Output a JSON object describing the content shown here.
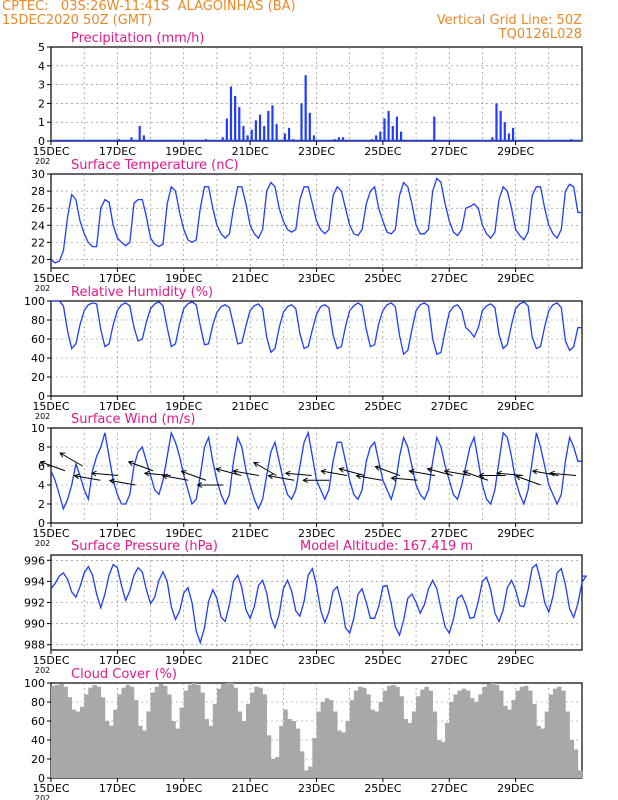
{
  "header": {
    "line1_left": "CPTEC:   03S:26W-11:41S  ALAGOINHAS (BA)",
    "line2_left": "15DEC2020 50Z (GMT)",
    "line1_right": "Vertical Grid Line: 50Z",
    "line2_right": "TQ0126L028"
  },
  "colors": {
    "header": "#e8892a",
    "title": "#e0198c",
    "line": "#1f3cff",
    "cloud": "#a8a8a8",
    "grid": "#808080"
  },
  "x_tick_labels": [
    "15DEC",
    "17DEC",
    "19DEC",
    "21DEC",
    "23DEC",
    "25DEC",
    "27DEC",
    "29DEC"
  ],
  "year_fragment": "202",
  "panels": [
    {
      "id": "precip",
      "title": "Precipitation (mm/h)",
      "yticks": [
        "0",
        "1",
        "2",
        "3",
        "4",
        "5"
      ]
    },
    {
      "id": "temp",
      "title": "Surface Temperature (nC)",
      "yticks": [
        "20",
        "22",
        "24",
        "26",
        "28",
        "30"
      ]
    },
    {
      "id": "rh",
      "title": "Relative Humidity (%)",
      "yticks": [
        "0",
        "20",
        "40",
        "60",
        "80",
        "100"
      ]
    },
    {
      "id": "wind",
      "title": "Surface Wind (m/s)",
      "yticks": [
        "0",
        "2",
        "4",
        "6",
        "8",
        "10"
      ]
    },
    {
      "id": "press",
      "title": "Surface Pressure (hPa)",
      "extra": "Model Altitude: 167.419 m",
      "yticks": [
        "988",
        "990",
        "992",
        "994",
        "996"
      ]
    },
    {
      "id": "cloud",
      "title": "Cloud Cover (%)",
      "yticks": [
        "0",
        "20",
        "40",
        "60",
        "80",
        "100"
      ]
    }
  ],
  "chart_data": [
    {
      "type": "bar",
      "title": "Precipitation (mm/h)",
      "ylim": [
        0,
        5
      ],
      "x_start": "2020-12-15",
      "x_step_hours": 3,
      "values": [
        0,
        0,
        0,
        0,
        0,
        0,
        0,
        0,
        0,
        0,
        0,
        0,
        0,
        0,
        0,
        0,
        0.1,
        0,
        0,
        0.2,
        0,
        0.8,
        0.3,
        0,
        0,
        0,
        0,
        0,
        0,
        0,
        0,
        0,
        0,
        0,
        0,
        0,
        0,
        0.1,
        0,
        0,
        0,
        0.2,
        1.2,
        2.9,
        2.4,
        1.8,
        0.8,
        0.3,
        0.6,
        1.1,
        1.4,
        0.8,
        1.6,
        1.9,
        0.9,
        0,
        0.4,
        0.7,
        0.1,
        0,
        2.0,
        3.5,
        1.5,
        0.3,
        0,
        0,
        0,
        0,
        0.1,
        0.2,
        0.2,
        0,
        0,
        0,
        0,
        0,
        0,
        0.1,
        0.3,
        0.5,
        1.2,
        1.6,
        0.8,
        1.3,
        0.5,
        0,
        0,
        0,
        0,
        0,
        0,
        0,
        1.3,
        0,
        0,
        0,
        0,
        0,
        0,
        0,
        0,
        0,
        0,
        0,
        0,
        0,
        0.2,
        2.0,
        1.6,
        1.0,
        0.4,
        0.7,
        0,
        0,
        0,
        0,
        0,
        0,
        0,
        0,
        0,
        0,
        0,
        0,
        0,
        0.1,
        0,
        0,
        0,
        0
      ]
    },
    {
      "type": "line",
      "title": "Surface Temperature (nC)",
      "ylim": [
        19,
        30
      ],
      "x_start": "2020-12-15",
      "x_step_hours": 3,
      "values": [
        20,
        19.6,
        19.8,
        21,
        25,
        27.6,
        27,
        24.5,
        23,
        22,
        21.5,
        21.5,
        26,
        27,
        26.7,
        24,
        22.5,
        22,
        21.6,
        22,
        26.6,
        27,
        27,
        25,
        22.5,
        21.8,
        21.5,
        21.8,
        26.5,
        28.5,
        28,
        25.5,
        23.5,
        22.3,
        22,
        22.3,
        26,
        28.5,
        28.5,
        26,
        24,
        23,
        22.5,
        23,
        26,
        28.5,
        28.5,
        26.5,
        24,
        23,
        22.5,
        23.5,
        28,
        29,
        28.5,
        26,
        24.5,
        23.5,
        23.2,
        23.5,
        27,
        28.5,
        28.5,
        26.5,
        24.5,
        23.5,
        23,
        23.5,
        27.5,
        28.5,
        28,
        26,
        24,
        23,
        22.8,
        23.5,
        26.5,
        28,
        28.5,
        26,
        24.5,
        23.2,
        23,
        23.5,
        27.5,
        29,
        28.5,
        26.5,
        24,
        23,
        23,
        23.5,
        28,
        29.5,
        29,
        26.5,
        24.5,
        23.2,
        22.8,
        23.5,
        26,
        26.2,
        26.5,
        26,
        24,
        23,
        22.5,
        23.2,
        27,
        28.5,
        28,
        26,
        23.5,
        22.8,
        22.3,
        23.2,
        27.5,
        28.5,
        28.5,
        26,
        24,
        23,
        22.5,
        23.5,
        28,
        28.8,
        28.5,
        25.5
      ]
    },
    {
      "type": "line",
      "title": "Relative Humidity (%)",
      "ylim": [
        0,
        100
      ],
      "x_start": "2020-12-15",
      "x_step_hours": 3,
      "values": [
        100,
        100,
        100,
        95,
        68,
        50,
        55,
        75,
        90,
        96,
        98,
        97,
        70,
        52,
        55,
        75,
        90,
        96,
        98,
        95,
        72,
        58,
        60,
        78,
        92,
        97,
        99,
        95,
        72,
        52,
        55,
        76,
        92,
        97,
        99,
        96,
        74,
        54,
        55,
        75,
        88,
        94,
        96,
        93,
        75,
        55,
        56,
        74,
        90,
        95,
        97,
        92,
        62,
        46,
        50,
        72,
        88,
        94,
        96,
        92,
        66,
        50,
        52,
        70,
        86,
        94,
        96,
        93,
        64,
        50,
        52,
        73,
        90,
        95,
        98,
        95,
        70,
        52,
        54,
        76,
        90,
        96,
        98,
        94,
        64,
        44,
        48,
        70,
        90,
        96,
        98,
        95,
        60,
        44,
        46,
        68,
        88,
        94,
        96,
        90,
        72,
        68,
        62,
        72,
        90,
        95,
        97,
        93,
        65,
        50,
        54,
        75,
        92,
        97,
        99,
        95,
        62,
        50,
        52,
        73,
        90,
        96,
        98,
        93,
        58,
        48,
        52,
        72
      ]
    },
    {
      "type": "line",
      "title": "Surface Wind (m/s)",
      "ylim": [
        0,
        10
      ],
      "x_start": "2020-12-15",
      "x_step_hours": 3,
      "values": [
        5.5,
        4.5,
        3,
        1.5,
        2.5,
        4,
        6.2,
        5,
        3.5,
        2.5,
        5.5,
        7,
        8,
        9.5,
        7,
        4.5,
        3,
        2,
        2,
        3,
        6,
        7.5,
        8,
        6.5,
        5,
        3.5,
        3,
        4.5,
        7,
        9.5,
        8.5,
        7,
        5,
        3.5,
        2,
        2.5,
        5,
        8,
        9,
        6.5,
        4.5,
        3,
        2,
        3,
        6.5,
        9,
        8,
        5.5,
        4,
        2.5,
        1.5,
        2.5,
        5,
        7.5,
        8.5,
        6.5,
        4.5,
        3,
        2.5,
        3.5,
        6,
        8.5,
        9.5,
        7,
        4.5,
        3.5,
        2.5,
        3.5,
        6.5,
        8.5,
        8.5,
        6.5,
        4.5,
        3,
        2.5,
        3.5,
        6.5,
        8,
        8.5,
        6.5,
        4.5,
        3.5,
        2.5,
        4,
        7,
        9,
        8,
        6,
        4,
        3,
        2.5,
        3.5,
        6.5,
        9,
        8,
        6,
        4.5,
        3,
        2.5,
        4,
        6,
        8,
        9,
        6.5,
        4,
        2.5,
        2,
        3.5,
        6.5,
        9.5,
        9,
        7,
        4.5,
        3,
        2,
        3.5,
        6.5,
        9.5,
        8,
        6,
        4,
        3,
        2,
        3,
        6.5,
        9,
        8,
        6.5
      ]
    },
    {
      "type": "line",
      "title": "Surface Pressure (hPa)",
      "ylim": [
        987.5,
        996.5
      ],
      "x_start": "2020-12-15",
      "x_step_hours": 3,
      "values": [
        993.3,
        993.8,
        994.5,
        994.8,
        994.2,
        993,
        992.5,
        993.5,
        994.8,
        995.4,
        994.6,
        992.8,
        991.5,
        992.8,
        994.6,
        995.6,
        995.3,
        993.6,
        992.2,
        993.1,
        994.6,
        995.3,
        994.9,
        993.2,
        991.9,
        992.5,
        994.1,
        994.9,
        994,
        991.6,
        990.4,
        991.2,
        992.9,
        993.4,
        992,
        989.3,
        988.2,
        989.6,
        992.1,
        993.2,
        992.4,
        990.6,
        990.2,
        991.8,
        994,
        994.6,
        993.4,
        991.3,
        990.5,
        991.6,
        993.6,
        994.1,
        992.9,
        990.6,
        989.6,
        990.9,
        993.3,
        994.1,
        993.1,
        991.2,
        990.7,
        992.1,
        994.6,
        995.2,
        993.6,
        991.3,
        990.1,
        991.1,
        993.1,
        993.5,
        992,
        989.6,
        989.1,
        990.5,
        992.8,
        993.3,
        992,
        990.5,
        990.5,
        991.6,
        993.5,
        993.6,
        991.9,
        989.7,
        988.9,
        990.3,
        992.4,
        992.8,
        992,
        991,
        991.8,
        993.3,
        994.1,
        993.3,
        991.4,
        989.7,
        989.1,
        990.4,
        992.4,
        992.7,
        991.8,
        990.5,
        990.6,
        992.1,
        994,
        994.4,
        993.2,
        991,
        990.2,
        991.3,
        993.4,
        994.1,
        993.2,
        991.7,
        991.6,
        993.2,
        995.3,
        995.6,
        994.1,
        992,
        991.1,
        992.6,
        994.8,
        995.2,
        993.7,
        991.4,
        990.6,
        991.9,
        993.9,
        994.5
      ]
    },
    {
      "type": "bar",
      "title": "Cloud Cover (%)",
      "ylim": [
        0,
        100
      ],
      "x_start": "2020-12-15",
      "x_step_hours": 3,
      "values": [
        97,
        98,
        99,
        96,
        85,
        72,
        70,
        75,
        88,
        95,
        98,
        96,
        85,
        60,
        55,
        72,
        88,
        95,
        98,
        96,
        82,
        55,
        50,
        70,
        90,
        96,
        99,
        97,
        88,
        60,
        52,
        74,
        92,
        98,
        100,
        98,
        90,
        62,
        55,
        78,
        94,
        99,
        100,
        100,
        95,
        70,
        60,
        78,
        90,
        96,
        95,
        88,
        45,
        20,
        22,
        55,
        72,
        62,
        60,
        52,
        28,
        8,
        12,
        42,
        70,
        80,
        84,
        82,
        70,
        50,
        48,
        60,
        82,
        92,
        96,
        95,
        88,
        72,
        70,
        80,
        92,
        97,
        98,
        96,
        86,
        62,
        58,
        70,
        86,
        93,
        96,
        92,
        70,
        40,
        38,
        58,
        80,
        88,
        92,
        94,
        92,
        84,
        80,
        88,
        96,
        99,
        100,
        98,
        92,
        76,
        72,
        82,
        92,
        96,
        97,
        92,
        78,
        55,
        52,
        70,
        88,
        94,
        96,
        92,
        70,
        40,
        30,
        8
      ]
    },
    {
      "type": "scatter",
      "title": "Surface Wind (m/s) — direction arrows",
      "x_start": "2020-12-15",
      "x_step_hours": 12,
      "speed": [
        5.5,
        6.0,
        4.5,
        5.0,
        4.0,
        5.5,
        5.0,
        4.5,
        4.5,
        4.0,
        5.0,
        5.0,
        5.0,
        4.5,
        5.0,
        4.5,
        5.0,
        5.0,
        4.5,
        5.0,
        4.5,
        5.0,
        5.0,
        5.0,
        4.5,
        5.0,
        5.0,
        4.0,
        5.0,
        5.0
      ],
      "direction_deg": [
        110,
        120,
        100,
        95,
        100,
        110,
        95,
        100,
        110,
        90,
        105,
        100,
        120,
        100,
        95,
        90,
        100,
        105,
        100,
        110,
        95,
        100,
        105,
        100,
        110,
        90,
        95,
        110,
        100,
        95
      ]
    }
  ]
}
